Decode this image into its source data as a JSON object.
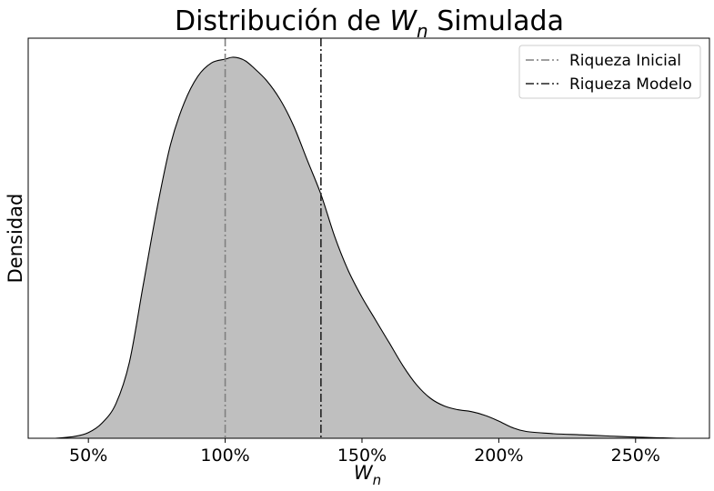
{
  "chart_data": {
    "type": "area",
    "title": "Distribución de W_n Simulada",
    "title_parts": {
      "prefix": "Distribución de ",
      "var": "W",
      "sub": "n",
      "suffix": " Simulada"
    },
    "xlabel": {
      "var": "W",
      "sub": "n"
    },
    "ylabel": "Densidad",
    "xlim": [
      0.28,
      2.77
    ],
    "ylim": [
      0,
      1.05
    ],
    "x_ticks": [
      0.5,
      1.0,
      1.5,
      2.0,
      2.5
    ],
    "x_tick_labels": [
      "50%",
      "100%",
      "150%",
      "200%",
      "250%"
    ],
    "y_ticks_shown": false,
    "grid": false,
    "legend_position": "top-right",
    "fill_color": "#bfbfbf",
    "line_color": "#000000",
    "series": [
      {
        "x": [
          0.38,
          0.45,
          0.5,
          0.55,
          0.6,
          0.65,
          0.7,
          0.75,
          0.8,
          0.85,
          0.9,
          0.95,
          1.0,
          1.025,
          1.05,
          1.075,
          1.1,
          1.15,
          1.2,
          1.25,
          1.3,
          1.35,
          1.4,
          1.45,
          1.5,
          1.55,
          1.6,
          1.65,
          1.7,
          1.75,
          1.8,
          1.85,
          1.9,
          1.95,
          2.0,
          2.05,
          2.1,
          2.2,
          2.3,
          2.4,
          2.5,
          2.6,
          2.65
        ],
        "y": [
          0.0,
          0.005,
          0.015,
          0.04,
          0.09,
          0.2,
          0.4,
          0.6,
          0.77,
          0.88,
          0.95,
          0.985,
          0.995,
          1.0,
          0.998,
          0.99,
          0.975,
          0.94,
          0.89,
          0.82,
          0.73,
          0.64,
          0.53,
          0.44,
          0.37,
          0.31,
          0.25,
          0.19,
          0.14,
          0.105,
          0.085,
          0.075,
          0.07,
          0.06,
          0.045,
          0.028,
          0.018,
          0.012,
          0.009,
          0.006,
          0.003,
          0.001,
          0.0
        ]
      }
    ],
    "vlines": [
      {
        "name": "Riqueza Inicial",
        "x": 1.0,
        "color": "#808080",
        "style": "dashdot"
      },
      {
        "name": "Riqueza Modelo",
        "x": 1.35,
        "color": "#222222",
        "style": "dashdot"
      }
    ]
  }
}
